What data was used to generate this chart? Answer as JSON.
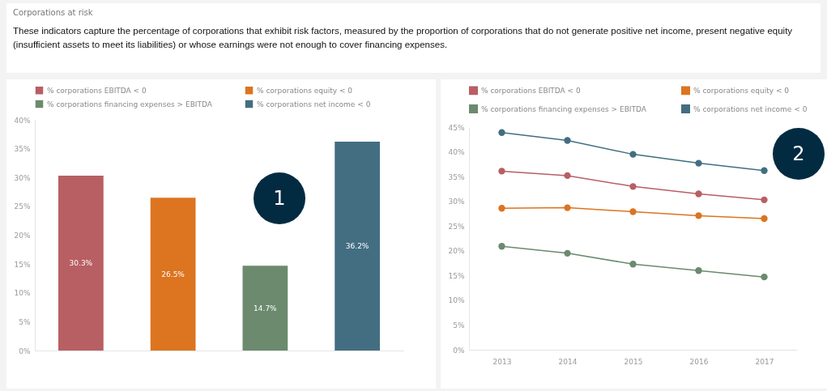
{
  "chart_data": [
    {
      "type": "bar",
      "title": "Corporations at risk",
      "subtitle": "These indicators capture the percentage of corporations that exhibit risk factors, measured by the proportion of corporations that do not generate positive net income, present negative equity (insufficient assets to meet its liabilities) or whose earnings were not enough to cover financing expenses.",
      "categories": [
        null,
        null,
        null,
        null
      ],
      "series": [
        {
          "name": "% corporations EBITDA < 0",
          "color": "#b85f63",
          "values": [
            30.3,
            null,
            null,
            null
          ],
          "value_labels": [
            "30.3%",
            null,
            null,
            null
          ]
        },
        {
          "name": "% corporations equity < 0",
          "color": "#dc7420",
          "values": [
            null,
            26.5,
            null,
            null
          ],
          "value_labels": [
            null,
            "26.5%",
            null,
            null
          ]
        },
        {
          "name": "% corporations financing expenses > EBITDA",
          "color": "#6b8a6e",
          "values": [
            null,
            null,
            14.7,
            null
          ],
          "value_labels": [
            null,
            null,
            "14.7%",
            null
          ]
        },
        {
          "name": "% corporations net income < 0",
          "color": "#436e82",
          "values": [
            null,
            null,
            null,
            36.2
          ],
          "value_labels": [
            null,
            null,
            null,
            "36.2%"
          ]
        }
      ],
      "ylim": [
        0,
        40
      ],
      "yticks": [
        {
          "value": 0,
          "label": "0%"
        },
        {
          "value": 5,
          "label": "5%"
        },
        {
          "value": 10,
          "label": "10%"
        },
        {
          "value": 15,
          "label": "15%"
        },
        {
          "value": 20,
          "label": "20%"
        },
        {
          "value": 25,
          "label": "25%"
        },
        {
          "value": 30,
          "label": "30%"
        },
        {
          "value": 35,
          "label": "35%"
        },
        {
          "value": 40,
          "label": "40%"
        }
      ],
      "tick_labels": "y",
      "grid": false,
      "legend": "top left",
      "annotations": [
        "1"
      ]
    },
    {
      "type": "line",
      "categories": [
        "2013",
        "2014",
        "2015",
        "2016",
        "2017"
      ],
      "series": [
        {
          "name": "% corporations EBITDA < 0",
          "color": "#b85f63",
          "values": [
            36.1,
            35.2,
            33.0,
            31.5,
            30.3
          ]
        },
        {
          "name": "% corporations equity < 0",
          "color": "#dc7420",
          "values": [
            28.6,
            28.7,
            27.9,
            27.1,
            26.5
          ]
        },
        {
          "name": "% corporations financing expenses > EBITDA",
          "color": "#6b8a6e",
          "values": [
            20.9,
            19.5,
            17.3,
            16.0,
            14.7
          ]
        },
        {
          "name": "% corporations net income < 0",
          "color": "#436e82",
          "values": [
            43.9,
            42.3,
            39.5,
            37.7,
            36.2
          ]
        }
      ],
      "ylim": [
        0,
        45
      ],
      "yticks": [
        {
          "value": 0,
          "label": "0%"
        },
        {
          "value": 5,
          "label": "5%"
        },
        {
          "value": 10,
          "label": "10%"
        },
        {
          "value": 15,
          "label": "15%"
        },
        {
          "value": 20,
          "label": "20%"
        },
        {
          "value": 25,
          "label": "25%"
        },
        {
          "value": 30,
          "label": "30%"
        },
        {
          "value": 35,
          "label": "35%"
        },
        {
          "value": 40,
          "label": "40%"
        },
        {
          "value": 45,
          "label": "45%"
        }
      ],
      "grid": false,
      "legend": "top left",
      "marker": "circle",
      "annotations": [
        "2"
      ]
    }
  ]
}
